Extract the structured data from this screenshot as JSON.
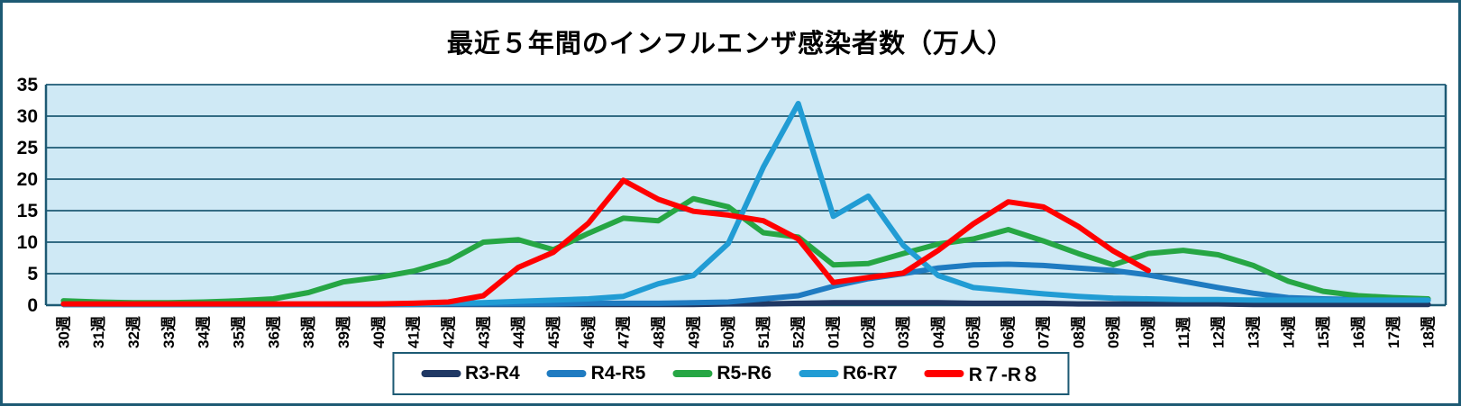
{
  "colors": {
    "frame_border": "#1D5A74",
    "plot_bg": "#CFE9F5",
    "gridline": "#1D5A74",
    "axis_text": "#000000",
    "legend_bg": "#FFFFFF"
  },
  "chart_data": {
    "type": "line",
    "title": "最近５年間のインフルエンザ感染者数（万人）",
    "xlabel": "",
    "ylabel": "",
    "ylim": [
      0,
      35
    ],
    "yticks": [
      0,
      5,
      10,
      15,
      20,
      25,
      30,
      35
    ],
    "grid": "horizontal",
    "legend_position": "bottom",
    "categories": [
      "30週",
      "31週",
      "32週",
      "33週",
      "34週",
      "35週",
      "36週",
      "38週",
      "39週",
      "40週",
      "41週",
      "42週",
      "43週",
      "44週",
      "45週",
      "46週",
      "47週",
      "48週",
      "49週",
      "50週",
      "51週",
      "52週",
      "01週",
      "02週",
      "03週",
      "04週",
      "05週",
      "06週",
      "07週",
      "08週",
      "09週",
      "10週",
      "11週",
      "12週",
      "13週",
      "14週",
      "15週",
      "16週",
      "17週",
      "18週"
    ],
    "series": [
      {
        "name": "R3-R4",
        "color": "#1F3864",
        "values": [
          0.1,
          0.1,
          0.1,
          0.1,
          0.1,
          0.1,
          0.1,
          0.1,
          0.1,
          0.1,
          0.1,
          0.1,
          0.1,
          0.1,
          0.1,
          0.1,
          0.1,
          0.1,
          0.1,
          0.2,
          0.2,
          0.3,
          0.4,
          0.4,
          0.4,
          0.4,
          0.3,
          0.3,
          0.3,
          0.2,
          0.2,
          0.2,
          0.2,
          0.2,
          0.1,
          0.1,
          0.1,
          0.1,
          0.1,
          0.1
        ]
      },
      {
        "name": "R4-R5",
        "color": "#1F7BC1",
        "values": [
          0.1,
          0.1,
          0.1,
          0.1,
          0.1,
          0.1,
          0.1,
          0.1,
          0.1,
          0.1,
          0.1,
          0.2,
          0.2,
          0.2,
          0.2,
          0.3,
          0.3,
          0.3,
          0.4,
          0.5,
          1.0,
          1.5,
          3.0,
          4.2,
          5.0,
          5.9,
          6.4,
          6.5,
          6.3,
          5.9,
          5.5,
          4.8,
          3.8,
          2.8,
          1.9,
          1.2,
          1.0,
          0.9,
          0.8,
          0.8
        ]
      },
      {
        "name": "R5-R6",
        "color": "#26A644",
        "values": [
          0.7,
          0.5,
          0.4,
          0.4,
          0.5,
          0.7,
          1.0,
          2.0,
          3.7,
          4.4,
          5.4,
          7.0,
          10.0,
          10.4,
          8.8,
          11.4,
          13.8,
          13.4,
          16.9,
          15.6,
          11.5,
          10.8,
          6.4,
          6.6,
          8.2,
          9.7,
          10.5,
          12.0,
          10.2,
          8.2,
          6.4,
          8.2,
          8.7,
          8.0,
          6.3,
          3.8,
          2.2,
          1.5,
          1.2,
          1.0
        ]
      },
      {
        "name": "R6-R7",
        "color": "#219CD4",
        "values": [
          0.1,
          0.1,
          0.1,
          0.1,
          0.1,
          0.1,
          0.1,
          0.1,
          0.2,
          0.2,
          0.2,
          0.3,
          0.4,
          0.6,
          0.8,
          1.0,
          1.4,
          3.4,
          4.7,
          9.8,
          21.9,
          32.0,
          14.1,
          17.3,
          9.5,
          4.7,
          2.8,
          2.3,
          1.8,
          1.4,
          1.1,
          1.0,
          0.9,
          0.9,
          0.8,
          0.8,
          0.8,
          0.8,
          0.8,
          0.8
        ]
      },
      {
        "name": "R７-R８",
        "color": "#FF0000",
        "values": [
          0.2,
          0.2,
          0.2,
          0.2,
          0.2,
          0.2,
          0.2,
          0.2,
          0.2,
          0.2,
          0.3,
          0.5,
          1.5,
          6.0,
          8.4,
          13.0,
          19.8,
          16.8,
          14.9,
          14.3,
          13.4,
          10.5,
          3.6,
          4.4,
          5.1,
          8.7,
          12.9,
          16.4,
          15.6,
          12.5,
          8.6,
          5.5,
          null,
          null,
          null,
          null,
          null,
          null,
          null,
          null
        ]
      }
    ]
  }
}
